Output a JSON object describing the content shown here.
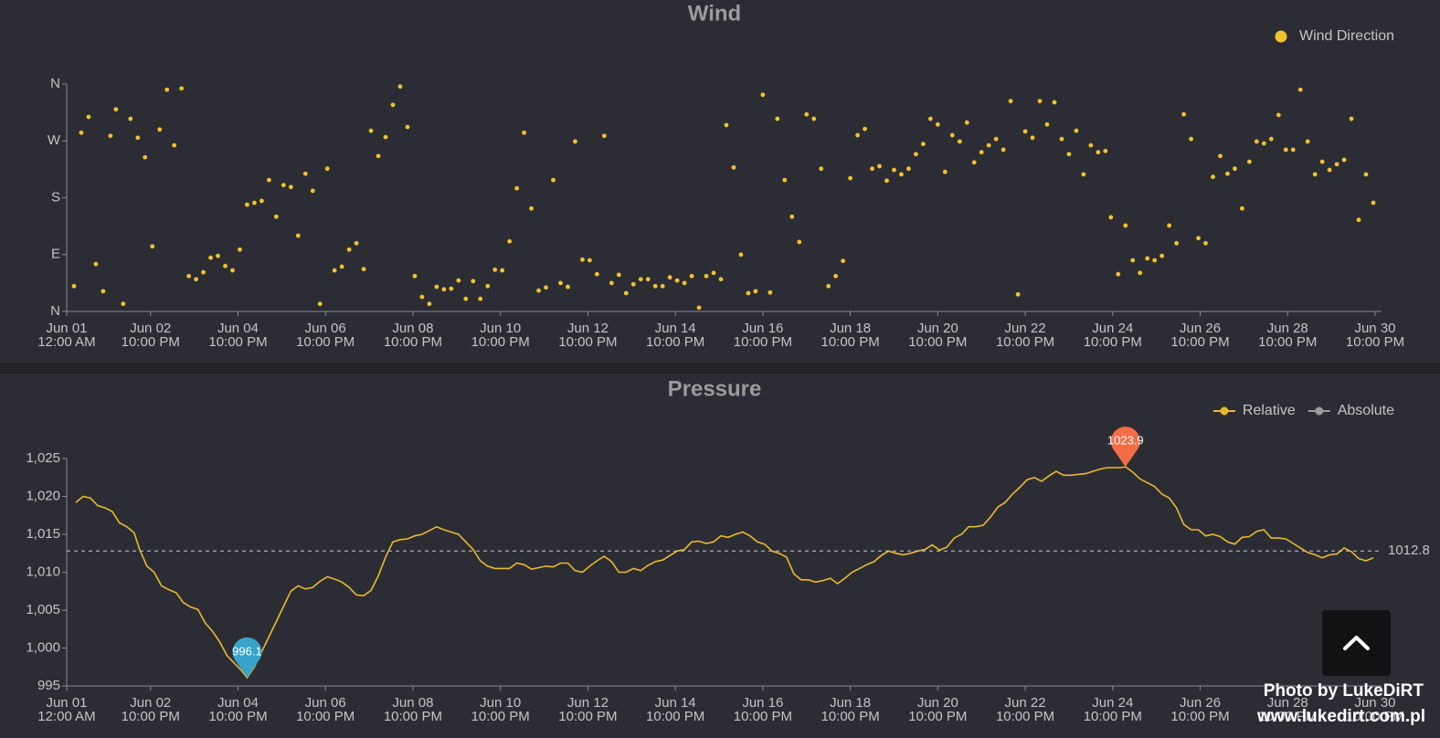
{
  "chart_data": [
    {
      "type": "scatter",
      "title": "Wind",
      "xlim": [
        0,
        718
      ],
      "xticks": [
        {
          "value": 0,
          "label": [
            "Jun 01",
            "12:00 AM"
          ]
        },
        {
          "value": 46,
          "label": [
            "Jun 02",
            "10:00 PM"
          ]
        },
        {
          "value": 94,
          "label": [
            "Jun 04",
            "10:00 PM"
          ]
        },
        {
          "value": 142,
          "label": [
            "Jun 06",
            "10:00 PM"
          ]
        },
        {
          "value": 190,
          "label": [
            "Jun 08",
            "10:00 PM"
          ]
        },
        {
          "value": 238,
          "label": [
            "Jun 10",
            "10:00 PM"
          ]
        },
        {
          "value": 286,
          "label": [
            "Jun 12",
            "10:00 PM"
          ]
        },
        {
          "value": 334,
          "label": [
            "Jun 14",
            "10:00 PM"
          ]
        },
        {
          "value": 382,
          "label": [
            "Jun 16",
            "10:00 PM"
          ]
        },
        {
          "value": 430,
          "label": [
            "Jun 18",
            "10:00 PM"
          ]
        },
        {
          "value": 478,
          "label": [
            "Jun 20",
            "10:00 PM"
          ]
        },
        {
          "value": 526,
          "label": [
            "Jun 22",
            "10:00 PM"
          ]
        },
        {
          "value": 574,
          "label": [
            "Jun 24",
            "10:00 PM"
          ]
        },
        {
          "value": 622,
          "label": [
            "Jun 26",
            "10:00 PM"
          ]
        },
        {
          "value": 670,
          "label": [
            "Jun 28",
            "10:00 PM"
          ]
        },
        {
          "value": 718,
          "label": [
            "Jun 30",
            "10:00 PM"
          ]
        }
      ],
      "ylim": [
        0,
        360
      ],
      "yticks": [
        {
          "value": 0,
          "label": "N"
        },
        {
          "value": 90,
          "label": "E"
        },
        {
          "value": 180,
          "label": "S"
        },
        {
          "value": 270,
          "label": "W"
        },
        {
          "value": 360,
          "label": "N"
        }
      ],
      "series": [
        {
          "name": "Wind Direction",
          "color": "#f2c230",
          "x": [
            4,
            8,
            12,
            16,
            20,
            24,
            27,
            31,
            35,
            39,
            43,
            47,
            51,
            55,
            59,
            63,
            67,
            71,
            75,
            79,
            83,
            87,
            91,
            95,
            99,
            103,
            107,
            111,
            115,
            119,
            123,
            127,
            131,
            135,
            139,
            143,
            147,
            151,
            155,
            159,
            163,
            167,
            171,
            175,
            179,
            183,
            187,
            191,
            195,
            199,
            203,
            207,
            211,
            215,
            219,
            223,
            227,
            231,
            235,
            239,
            243,
            247,
            251,
            255,
            259,
            263,
            267,
            271,
            275,
            279,
            283,
            287,
            291,
            295,
            299,
            303,
            307,
            311,
            315,
            319,
            323,
            327,
            331,
            335,
            339,
            343,
            347,
            351,
            355,
            359,
            362,
            366,
            370,
            374,
            378,
            382,
            386,
            390,
            394,
            398,
            402,
            406,
            410,
            414,
            418,
            422,
            426,
            430,
            434,
            438,
            442,
            446,
            450,
            454,
            458,
            462,
            466,
            470,
            474,
            478,
            482,
            486,
            490,
            494,
            498,
            502,
            506,
            510,
            514,
            518,
            522,
            526,
            530,
            534,
            538,
            542,
            546,
            550,
            554,
            558,
            562,
            566,
            570,
            573,
            577,
            581,
            585,
            589,
            593,
            597,
            601,
            605,
            609,
            613,
            617,
            621,
            625,
            629,
            633,
            637,
            641,
            645,
            649,
            653,
            657,
            661,
            665,
            669,
            673,
            677,
            681,
            685,
            689,
            693,
            697,
            701,
            705,
            709,
            713,
            717
          ],
          "values": [
            40,
            283,
            308,
            75,
            32,
            278,
            320,
            12,
            305,
            275,
            244,
            103,
            288,
            351,
            263,
            353,
            56,
            51,
            62,
            85,
            88,
            72,
            65,
            98,
            169,
            172,
            175,
            208,
            150,
            200,
            197,
            120,
            218,
            191,
            12,
            226,
            65,
            71,
            98,
            108,
            67,
            286,
            246,
            276,
            327,
            356,
            292,
            56,
            23,
            12,
            39,
            35,
            36,
            49,
            20,
            48,
            20,
            40,
            66,
            65,
            111,
            195,
            283,
            163,
            33,
            38,
            208,
            45,
            39,
            269,
            82,
            81,
            59,
            278,
            45,
            58,
            29,
            43,
            51,
            51,
            40,
            40,
            54,
            49,
            45,
            56,
            6,
            56,
            61,
            51,
            295,
            228,
            90,
            29,
            32,
            343,
            30,
            305,
            208,
            150,
            110,
            312,
            305,
            226,
            40,
            56,
            80,
            211,
            279,
            289,
            226,
            230,
            207,
            224,
            217,
            226,
            249,
            265,
            305,
            296,
            221,
            279,
            269,
            299,
            236,
            252,
            263,
            273,
            256,
            333,
            27,
            285,
            275,
            333,
            296,
            331,
            273,
            249,
            286,
            217,
            263,
            252,
            254,
            149,
            59,
            136,
            81,
            61,
            84,
            81,
            88,
            136,
            108,
            312,
            273,
            116,
            108,
            213,
            246,
            218,
            226,
            163,
            237,
            269,
            266,
            273,
            311,
            256,
            256,
            351,
            269,
            217,
            237,
            224,
            233,
            240,
            305,
            145,
            217,
            172
          ]
        }
      ]
    },
    {
      "type": "line",
      "title": "Pressure",
      "xlim": [
        0,
        718
      ],
      "xticks": [
        {
          "value": 0,
          "label": [
            "Jun 01",
            "12:00 AM"
          ]
        },
        {
          "value": 46,
          "label": [
            "Jun 02",
            "10:00 PM"
          ]
        },
        {
          "value": 94,
          "label": [
            "Jun 04",
            "10:00 PM"
          ]
        },
        {
          "value": 142,
          "label": [
            "Jun 06",
            "10:00 PM"
          ]
        },
        {
          "value": 190,
          "label": [
            "Jun 08",
            "10:00 PM"
          ]
        },
        {
          "value": 238,
          "label": [
            "Jun 10",
            "10:00 PM"
          ]
        },
        {
          "value": 286,
          "label": [
            "Jun 12",
            "10:00 PM"
          ]
        },
        {
          "value": 334,
          "label": [
            "Jun 14",
            "10:00 PM"
          ]
        },
        {
          "value": 382,
          "label": [
            "Jun 16",
            "10:00 PM"
          ]
        },
        {
          "value": 430,
          "label": [
            "Jun 18",
            "10:00 PM"
          ]
        },
        {
          "value": 478,
          "label": [
            "Jun 20",
            "10:00 PM"
          ]
        },
        {
          "value": 526,
          "label": [
            "Jun 22",
            "10:00 PM"
          ]
        },
        {
          "value": 574,
          "label": [
            "Jun 24",
            "10:00 PM"
          ]
        },
        {
          "value": 622,
          "label": [
            "Jun 26",
            "10:00 PM"
          ]
        },
        {
          "value": 670,
          "label": [
            "Jun 28",
            "10:00 PM"
          ]
        },
        {
          "value": 718,
          "label": [
            "Jun 30",
            "10:00 PM"
          ]
        }
      ],
      "ylim": [
        995,
        1025
      ],
      "yticks": [
        995,
        {
          "value": 1000,
          "label": "1,000"
        },
        {
          "value": 1005,
          "label": "1,005"
        },
        {
          "value": 1010,
          "label": "1,010"
        },
        {
          "value": 1015,
          "label": "1,015"
        },
        {
          "value": 1020,
          "label": "1,020"
        },
        {
          "value": 1025,
          "label": "1,025"
        }
      ],
      "series": [
        {
          "name": "Relative",
          "color": "#e9b931",
          "x": [
            5,
            9,
            13,
            17,
            21,
            25,
            29,
            33,
            37,
            40,
            44,
            48,
            52,
            56,
            60,
            64,
            68,
            72,
            76,
            80,
            84,
            88,
            92,
            96,
            99,
            103,
            107,
            111,
            115,
            119,
            123,
            127,
            131,
            135,
            139,
            143,
            147,
            151,
            155,
            159,
            163,
            167,
            171,
            175,
            179,
            183,
            187,
            191,
            195,
            199,
            203,
            207,
            211,
            215,
            219,
            223,
            227,
            231,
            235,
            239,
            243,
            247,
            251,
            255,
            259,
            263,
            267,
            271,
            275,
            279,
            283,
            287,
            291,
            295,
            299,
            303,
            307,
            311,
            315,
            319,
            323,
            327,
            331,
            335,
            339,
            343,
            347,
            351,
            355,
            359,
            363,
            367,
            371,
            375,
            379,
            383,
            387,
            391,
            395,
            399,
            403,
            407,
            411,
            415,
            419,
            423,
            427,
            431,
            435,
            439,
            443,
            447,
            451,
            455,
            459,
            463,
            467,
            471,
            475,
            479,
            483,
            487,
            491,
            495,
            499,
            503,
            507,
            511,
            515,
            519,
            523,
            527,
            531,
            535,
            539,
            543,
            547,
            551,
            555,
            559,
            563,
            567,
            571,
            575,
            578,
            581,
            585,
            589,
            593,
            597,
            601,
            605,
            609,
            613,
            617,
            621,
            625,
            629,
            633,
            637,
            641,
            645,
            649,
            653,
            657,
            661,
            665,
            669,
            673,
            677,
            681,
            685,
            689,
            693,
            697,
            701,
            705,
            709,
            713,
            717
          ],
          "values": [
            1019.2,
            1020,
            1019.8,
            1018.8,
            1018.5,
            1018,
            1016.5,
            1016,
            1015.2,
            1013,
            1010.8,
            1010,
            1008.2,
            1007.7,
            1007.3,
            1006,
            1005.4,
            1005.1,
            1003.3,
            1002.2,
            1000.8,
            999,
            998,
            997,
            996.1,
            997.5,
            999.5,
            1001.5,
            1003.5,
            1005.5,
            1007.5,
            1008.2,
            1007.8,
            1008,
            1008.8,
            1009.4,
            1009.1,
            1008.7,
            1008,
            1007,
            1006.9,
            1007.6,
            1009.5,
            1012,
            1014,
            1014.3,
            1014.4,
            1014.8,
            1015,
            1015.5,
            1016,
            1015.6,
            1015.3,
            1015,
            1014,
            1013,
            1011.5,
            1010.8,
            1010.5,
            1010.5,
            1010.5,
            1011.2,
            1011,
            1010.4,
            1010.6,
            1010.8,
            1010.7,
            1011.2,
            1011.2,
            1010.2,
            1010,
            1010.8,
            1011.5,
            1012.1,
            1011.4,
            1010,
            1010,
            1010.5,
            1010.2,
            1010.9,
            1011.4,
            1011.6,
            1012.2,
            1012.8,
            1013,
            1014,
            1014.1,
            1013.8,
            1014,
            1014.8,
            1014.6,
            1015,
            1015.3,
            1014.8,
            1014,
            1013.7,
            1012.8,
            1012.5,
            1012,
            1009.8,
            1009,
            1009,
            1008.7,
            1008.9,
            1009.2,
            1008.5,
            1009.2,
            1010,
            1010.5,
            1011,
            1011.4,
            1012.2,
            1012.8,
            1012.5,
            1012.3,
            1012.5,
            1012.8,
            1013,
            1013.6,
            1012.9,
            1013.3,
            1014.5,
            1015,
            1016,
            1016,
            1016.2,
            1017.3,
            1018.6,
            1019.2,
            1020.3,
            1021.2,
            1022.2,
            1022.5,
            1022,
            1022.7,
            1023.3,
            1022.8,
            1022.8,
            1022.9,
            1023,
            1023.3,
            1023.6,
            1023.8,
            1023.8,
            1023.8,
            1023.9,
            1023.2,
            1022.3,
            1021.8,
            1021.3,
            1020.3,
            1019.8,
            1018.5,
            1016.3,
            1015.6,
            1015.6,
            1014.8,
            1015,
            1014.7,
            1014,
            1013.7,
            1014.6,
            1014.7,
            1015.4,
            1015.6,
            1014.5,
            1014.5,
            1014.4,
            1013.8,
            1013.2,
            1012.6,
            1012.3,
            1011.9,
            1012.3,
            1012.4,
            1013.2,
            1012.7,
            1011.8,
            1011.5,
            1011.9
          ]
        },
        {
          "name": "Absolute",
          "color": "#9c9ca0"
        }
      ],
      "min": {
        "x": 99,
        "value": 996.1,
        "color": "#37a3ca"
      },
      "max": {
        "x": 581,
        "value": 1023.9,
        "color": "#f26e47"
      },
      "average": 1012.8
    }
  ],
  "watermark": [
    "Photo by LukeDiRT",
    "www.lukedirt.com.pl"
  ]
}
